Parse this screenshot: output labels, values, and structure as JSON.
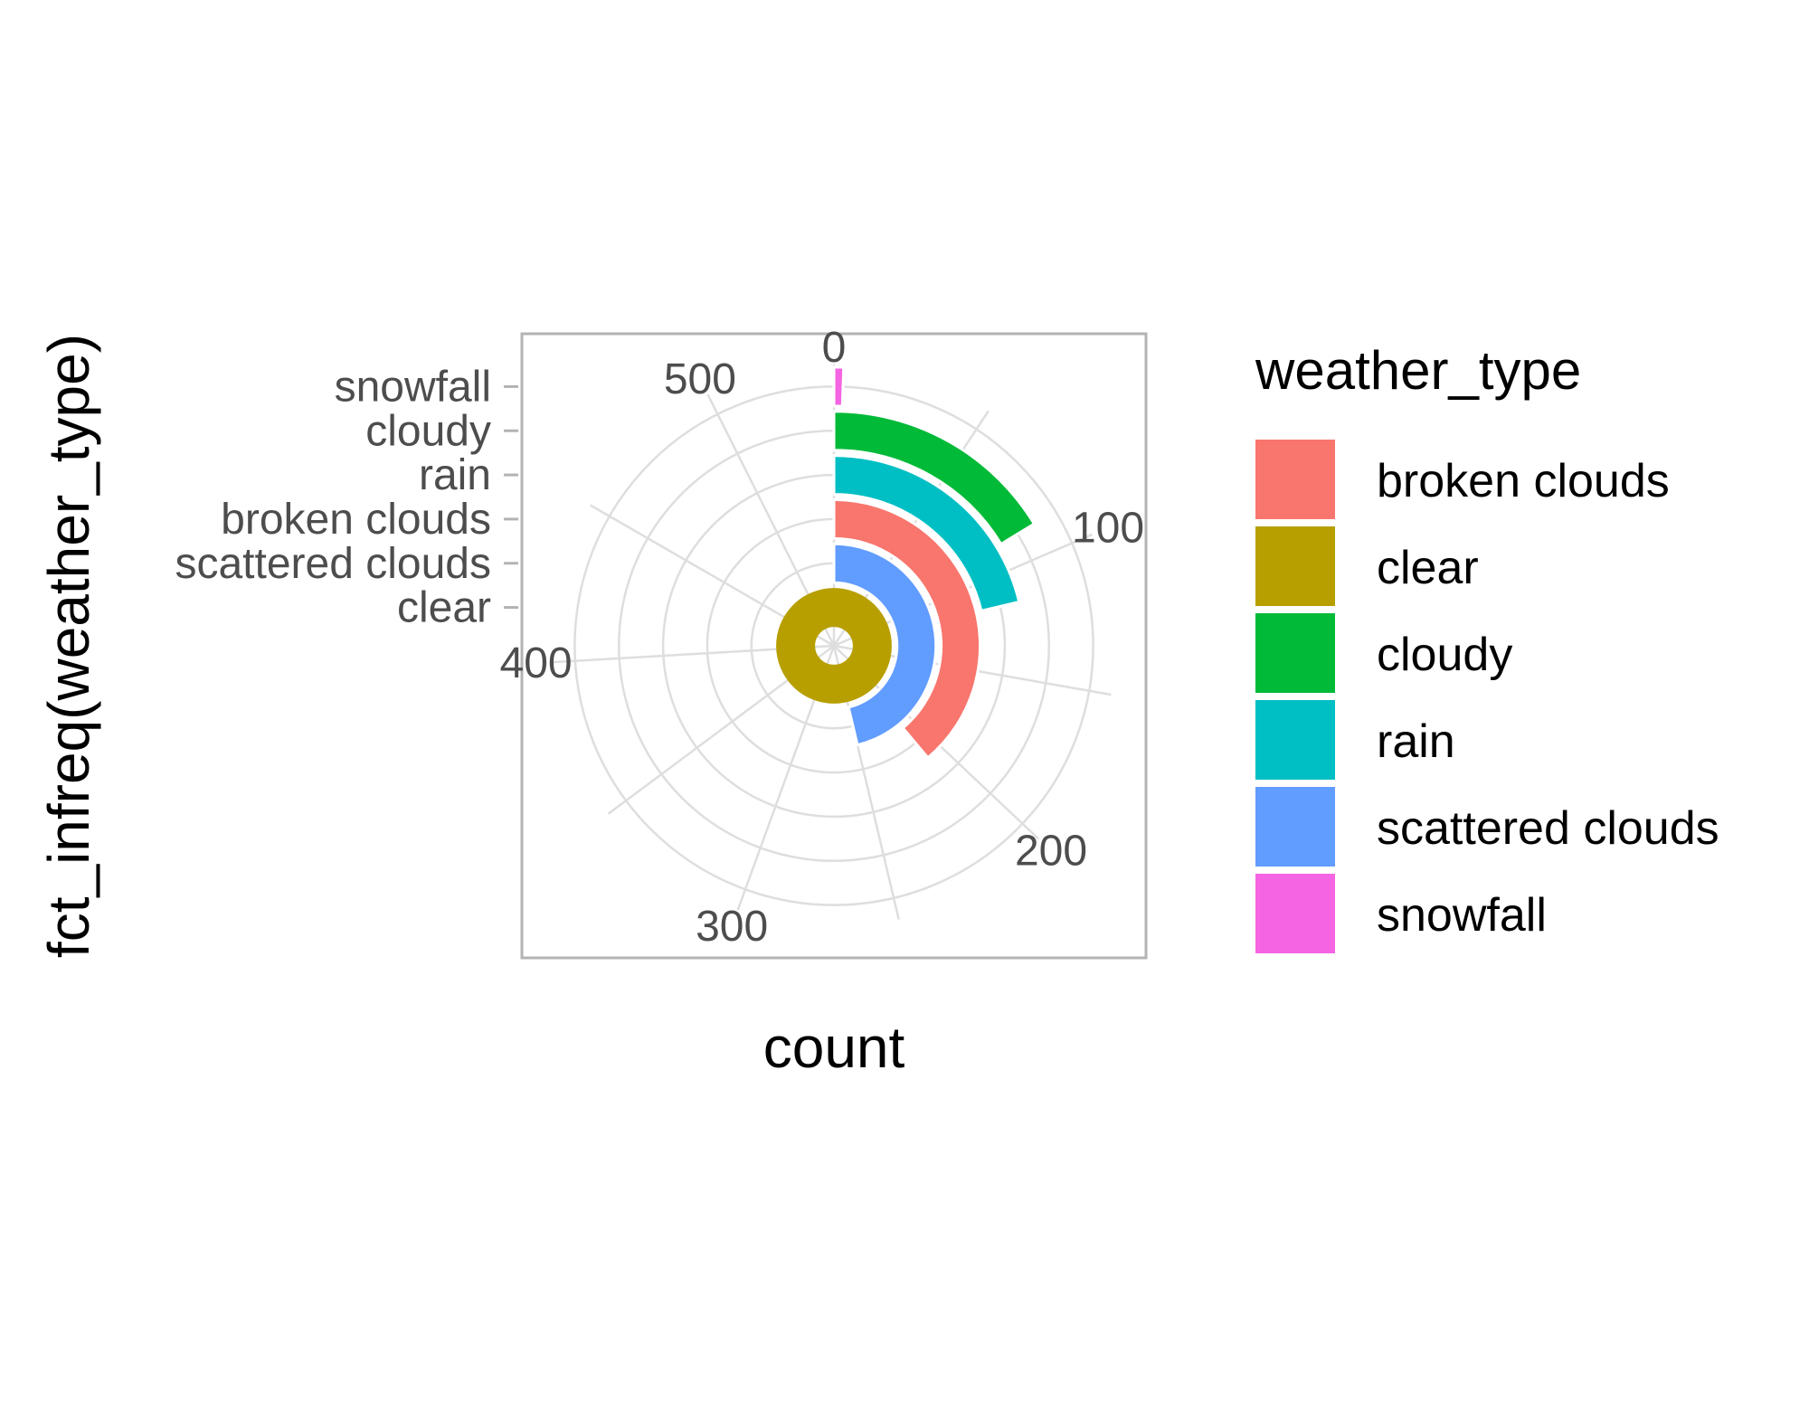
{
  "chart_data": {
    "type": "bar",
    "coord": "polar",
    "xlabel": "count",
    "ylabel": "fct_infreq(weather_type)",
    "categories": [
      "clear",
      "scattered clouds",
      "broken clouds",
      "rain",
      "cloudy",
      "snowfall"
    ],
    "values": [
      540,
      250,
      210,
      115,
      88,
      3
    ],
    "xlim": [
      0,
      540
    ],
    "x_ticks": [
      0,
      100,
      200,
      300,
      400,
      500
    ],
    "y_ticks": [
      "snowfall",
      "cloudy",
      "rain",
      "broken clouds",
      "scattered clouds",
      "clear"
    ],
    "grid": true,
    "legend": {
      "title": "weather_type",
      "position": "right",
      "items": [
        {
          "label": "broken clouds",
          "color": "#F8766D"
        },
        {
          "label": "clear",
          "color": "#B79F00"
        },
        {
          "label": "cloudy",
          "color": "#00BA38"
        },
        {
          "label": "rain",
          "color": "#00BFC4"
        },
        {
          "label": "scattered clouds",
          "color": "#619CFF"
        },
        {
          "label": "snowfall",
          "color": "#F564E3"
        }
      ]
    },
    "colors": {
      "clear": "#B79F00",
      "scattered clouds": "#619CFF",
      "broken clouds": "#F8766D",
      "rain": "#00BFC4",
      "cloudy": "#00BA38",
      "snowfall": "#F564E3"
    }
  }
}
